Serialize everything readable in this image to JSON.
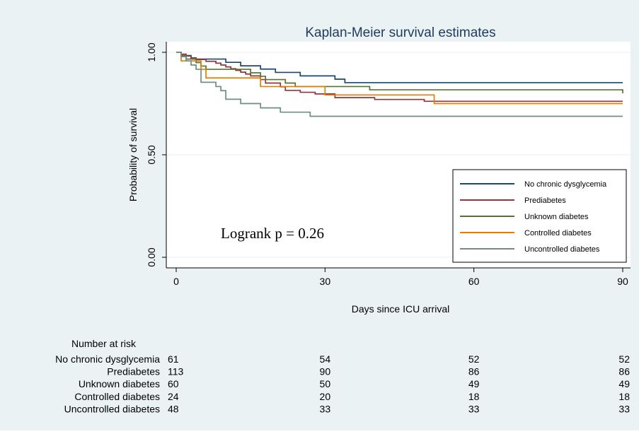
{
  "chart_data": {
    "type": "line",
    "step": true,
    "title": "Kaplan-Meier survival estimates",
    "xlabel": "Days since ICU arrival",
    "ylabel": "Probability of survival",
    "xlim": [
      0,
      90
    ],
    "ylim": [
      0,
      1
    ],
    "xticks": [
      0,
      30,
      60,
      90
    ],
    "yticks": [
      0,
      0.5,
      1
    ],
    "ytick_labels": [
      "0.00",
      "0.50",
      "1.00"
    ],
    "grid": "horizontal",
    "legend_position": "bottom-right",
    "annotation": "Logrank p = 0.26",
    "series": [
      {
        "name": "No chronic dysglycemia",
        "color": "#1a476f",
        "points": [
          [
            0,
            1
          ],
          [
            1,
            0.984
          ],
          [
            3,
            0.967
          ],
          [
            10,
            0.951
          ],
          [
            13,
            0.934
          ],
          [
            17,
            0.918
          ],
          [
            20,
            0.902
          ],
          [
            25,
            0.885
          ],
          [
            32,
            0.869
          ],
          [
            34,
            0.852
          ],
          [
            90,
            0.852
          ]
        ]
      },
      {
        "name": "Prediabetes",
        "color": "#90353b",
        "points": [
          [
            0,
            1
          ],
          [
            1,
            0.991
          ],
          [
            2,
            0.982
          ],
          [
            3,
            0.973
          ],
          [
            4,
            0.965
          ],
          [
            6,
            0.956
          ],
          [
            8,
            0.947
          ],
          [
            9,
            0.938
          ],
          [
            10,
            0.929
          ],
          [
            11,
            0.92
          ],
          [
            12,
            0.912
          ],
          [
            13,
            0.903
          ],
          [
            14,
            0.894
          ],
          [
            15,
            0.885
          ],
          [
            17,
            0.867
          ],
          [
            18,
            0.85
          ],
          [
            21,
            0.832
          ],
          [
            22,
            0.814
          ],
          [
            25,
            0.805
          ],
          [
            28,
            0.797
          ],
          [
            32,
            0.779
          ],
          [
            40,
            0.77
          ],
          [
            50,
            0.761
          ],
          [
            90,
            0.761
          ]
        ]
      },
      {
        "name": "Unknown diabetes",
        "color": "#55752f",
        "points": [
          [
            0,
            1
          ],
          [
            1,
            0.983
          ],
          [
            2,
            0.967
          ],
          [
            4,
            0.95
          ],
          [
            5,
            0.933
          ],
          [
            6,
            0.917
          ],
          [
            15,
            0.9
          ],
          [
            17,
            0.883
          ],
          [
            18,
            0.867
          ],
          [
            22,
            0.85
          ],
          [
            24,
            0.833
          ],
          [
            39,
            0.817
          ],
          [
            90,
            0.817
          ],
          [
            90,
            0.8
          ]
        ]
      },
      {
        "name": "Controlled diabetes",
        "color": "#e37e00",
        "points": [
          [
            0,
            1
          ],
          [
            1,
            0.958
          ],
          [
            5,
            0.917
          ],
          [
            6,
            0.875
          ],
          [
            17,
            0.833
          ],
          [
            30,
            0.792
          ],
          [
            52,
            0.75
          ],
          [
            90,
            0.75
          ]
        ]
      },
      {
        "name": "Uncontrolled diabetes",
        "color": "#6e8e84",
        "points": [
          [
            0,
            1
          ],
          [
            1,
            0.979
          ],
          [
            2,
            0.958
          ],
          [
            3,
            0.938
          ],
          [
            4,
            0.917
          ],
          [
            5,
            0.854
          ],
          [
            8,
            0.833
          ],
          [
            9,
            0.813
          ],
          [
            10,
            0.771
          ],
          [
            13,
            0.75
          ],
          [
            17,
            0.729
          ],
          [
            21,
            0.708
          ],
          [
            27,
            0.688
          ],
          [
            90,
            0.688
          ]
        ]
      }
    ],
    "risk_table": {
      "header": "Number at risk",
      "times": [
        0,
        30,
        60,
        90
      ],
      "rows": [
        {
          "label": "No chronic dysglycemia",
          "values": [
            "61",
            "54",
            "52",
            "52"
          ]
        },
        {
          "label": "Prediabetes",
          "values": [
            "113",
            "90",
            "86",
            "86"
          ]
        },
        {
          "label": "Unknown diabetes",
          "values": [
            "60",
            "50",
            "49",
            "49"
          ]
        },
        {
          "label": "Controlled diabetes",
          "values": [
            "24",
            "20",
            "18",
            "18"
          ]
        },
        {
          "label": "Uncontrolled diabetes",
          "values": [
            "48",
            "33",
            "33",
            "33"
          ]
        }
      ]
    }
  }
}
